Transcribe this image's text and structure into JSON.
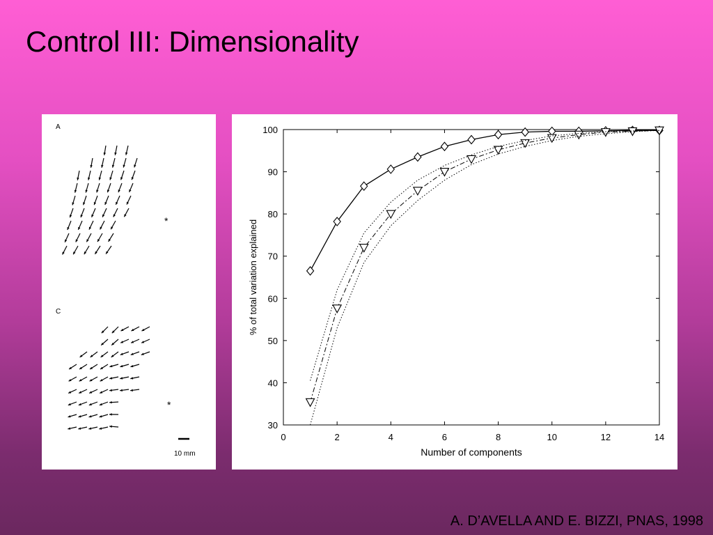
{
  "slide": {
    "title": "Control III: Dimensionality",
    "citation": "A. D’AVELLA AND E. BIZZI, PNAS, 1998",
    "background_top": "#ff5ed4",
    "background_bottom": "#6b285f"
  },
  "left_figure": {
    "label_a": "A",
    "label_c": "C",
    "star": "*",
    "scale_label": "10 mm"
  },
  "chart_data": {
    "type": "line",
    "xlabel": "Number of components",
    "ylabel": "% of total variation explained",
    "xlim": [
      0,
      14
    ],
    "ylim": [
      30,
      100
    ],
    "xticks": [
      0,
      2,
      4,
      6,
      8,
      10,
      12,
      14
    ],
    "yticks": [
      30,
      40,
      50,
      60,
      70,
      80,
      90,
      100
    ],
    "grid": false,
    "series": [
      {
        "marker": "diamond",
        "style": "solid",
        "x": [
          1,
          2,
          3,
          4,
          5,
          6,
          7,
          8,
          9,
          10,
          11,
          12,
          13,
          14
        ],
        "values": [
          66.5,
          78.2,
          86.6,
          90.6,
          93.5,
          96.0,
          97.6,
          98.8,
          99.4,
          99.6,
          99.6,
          99.7,
          99.8,
          99.8
        ]
      },
      {
        "marker": "triangle",
        "style": "dashdot",
        "x": [
          1,
          2,
          3,
          4,
          5,
          6,
          7,
          8,
          9,
          10,
          11,
          12,
          13,
          14
        ],
        "values": [
          35.4,
          57.6,
          72.0,
          80.0,
          85.5,
          90.0,
          93.0,
          95.2,
          96.8,
          98.0,
          98.8,
          99.4,
          99.6,
          99.8
        ]
      },
      {
        "marker": "none",
        "style": "dotted",
        "x": [
          1,
          2,
          3,
          4,
          5,
          6,
          7,
          8,
          9,
          10,
          11,
          12,
          13,
          14
        ],
        "values": [
          40.5,
          62.0,
          75.5,
          82.8,
          88.0,
          91.5,
          94.0,
          96.0,
          97.4,
          98.5,
          99.1,
          99.5,
          99.7,
          99.8
        ]
      },
      {
        "marker": "none",
        "style": "dotted",
        "x": [
          1,
          2,
          3,
          4,
          5,
          6,
          7,
          8,
          9,
          10,
          11,
          12,
          13,
          14
        ],
        "values": [
          30.0,
          53.0,
          68.5,
          77.2,
          83.2,
          88.0,
          91.7,
          94.2,
          96.0,
          97.4,
          98.4,
          99.0,
          99.5,
          99.8
        ]
      }
    ]
  }
}
